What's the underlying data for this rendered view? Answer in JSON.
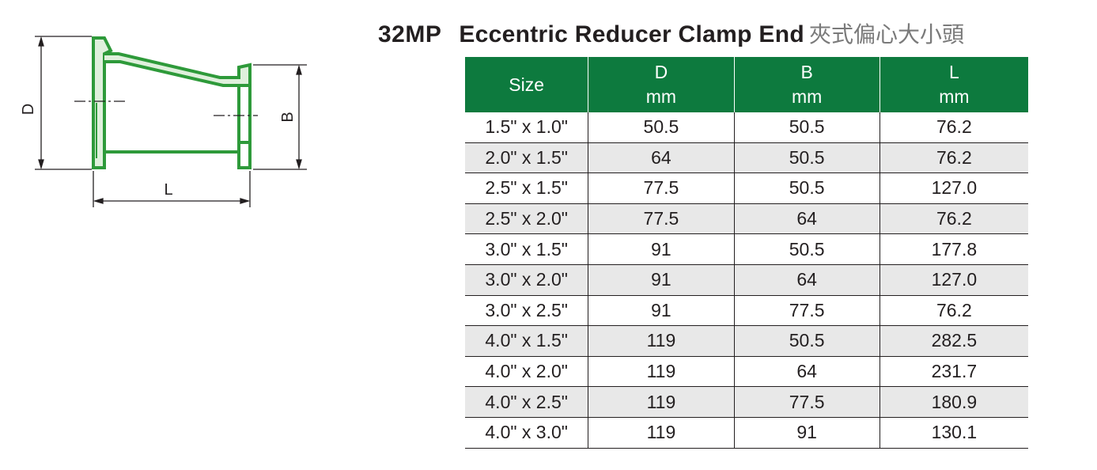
{
  "title": {
    "code": "32MP",
    "name": "Eccentric Reducer Clamp End",
    "name_cjk": "夾式偏心大小頭"
  },
  "drawing": {
    "label_d": "D",
    "label_b": "B",
    "label_l": "L",
    "fitting_color": "#2e9a3a"
  },
  "colors": {
    "header_bg": "#0d7a3e",
    "row_shade": "#e8e8e8"
  },
  "table": {
    "headers": {
      "size": "Size",
      "d": "D",
      "d_unit": "mm",
      "b": "B",
      "b_unit": "mm",
      "l": "L",
      "l_unit": "mm"
    },
    "rows": [
      {
        "size": "1.5\" x 1.0\"",
        "d": "50.5",
        "b": "50.5",
        "l": "76.2"
      },
      {
        "size": "2.0\" x 1.5\"",
        "d": "64",
        "b": "50.5",
        "l": "76.2"
      },
      {
        "size": "2.5\" x 1.5\"",
        "d": "77.5",
        "b": "50.5",
        "l": "127.0"
      },
      {
        "size": "2.5\" x 2.0\"",
        "d": "77.5",
        "b": "64",
        "l": "76.2"
      },
      {
        "size": "3.0\" x 1.5\"",
        "d": "91",
        "b": "50.5",
        "l": "177.8"
      },
      {
        "size": "3.0\" x 2.0\"",
        "d": "91",
        "b": "64",
        "l": "127.0"
      },
      {
        "size": "3.0\" x 2.5\"",
        "d": "91",
        "b": "77.5",
        "l": "76.2"
      },
      {
        "size": "4.0\" x 1.5\"",
        "d": "119",
        "b": "50.5",
        "l": "282.5"
      },
      {
        "size": "4.0\" x 2.0\"",
        "d": "119",
        "b": "64",
        "l": "231.7"
      },
      {
        "size": "4.0\" x 2.5\"",
        "d": "119",
        "b": "77.5",
        "l": "180.9"
      },
      {
        "size": "4.0\" x 3.0\"",
        "d": "119",
        "b": "91",
        "l": "130.1"
      }
    ]
  }
}
